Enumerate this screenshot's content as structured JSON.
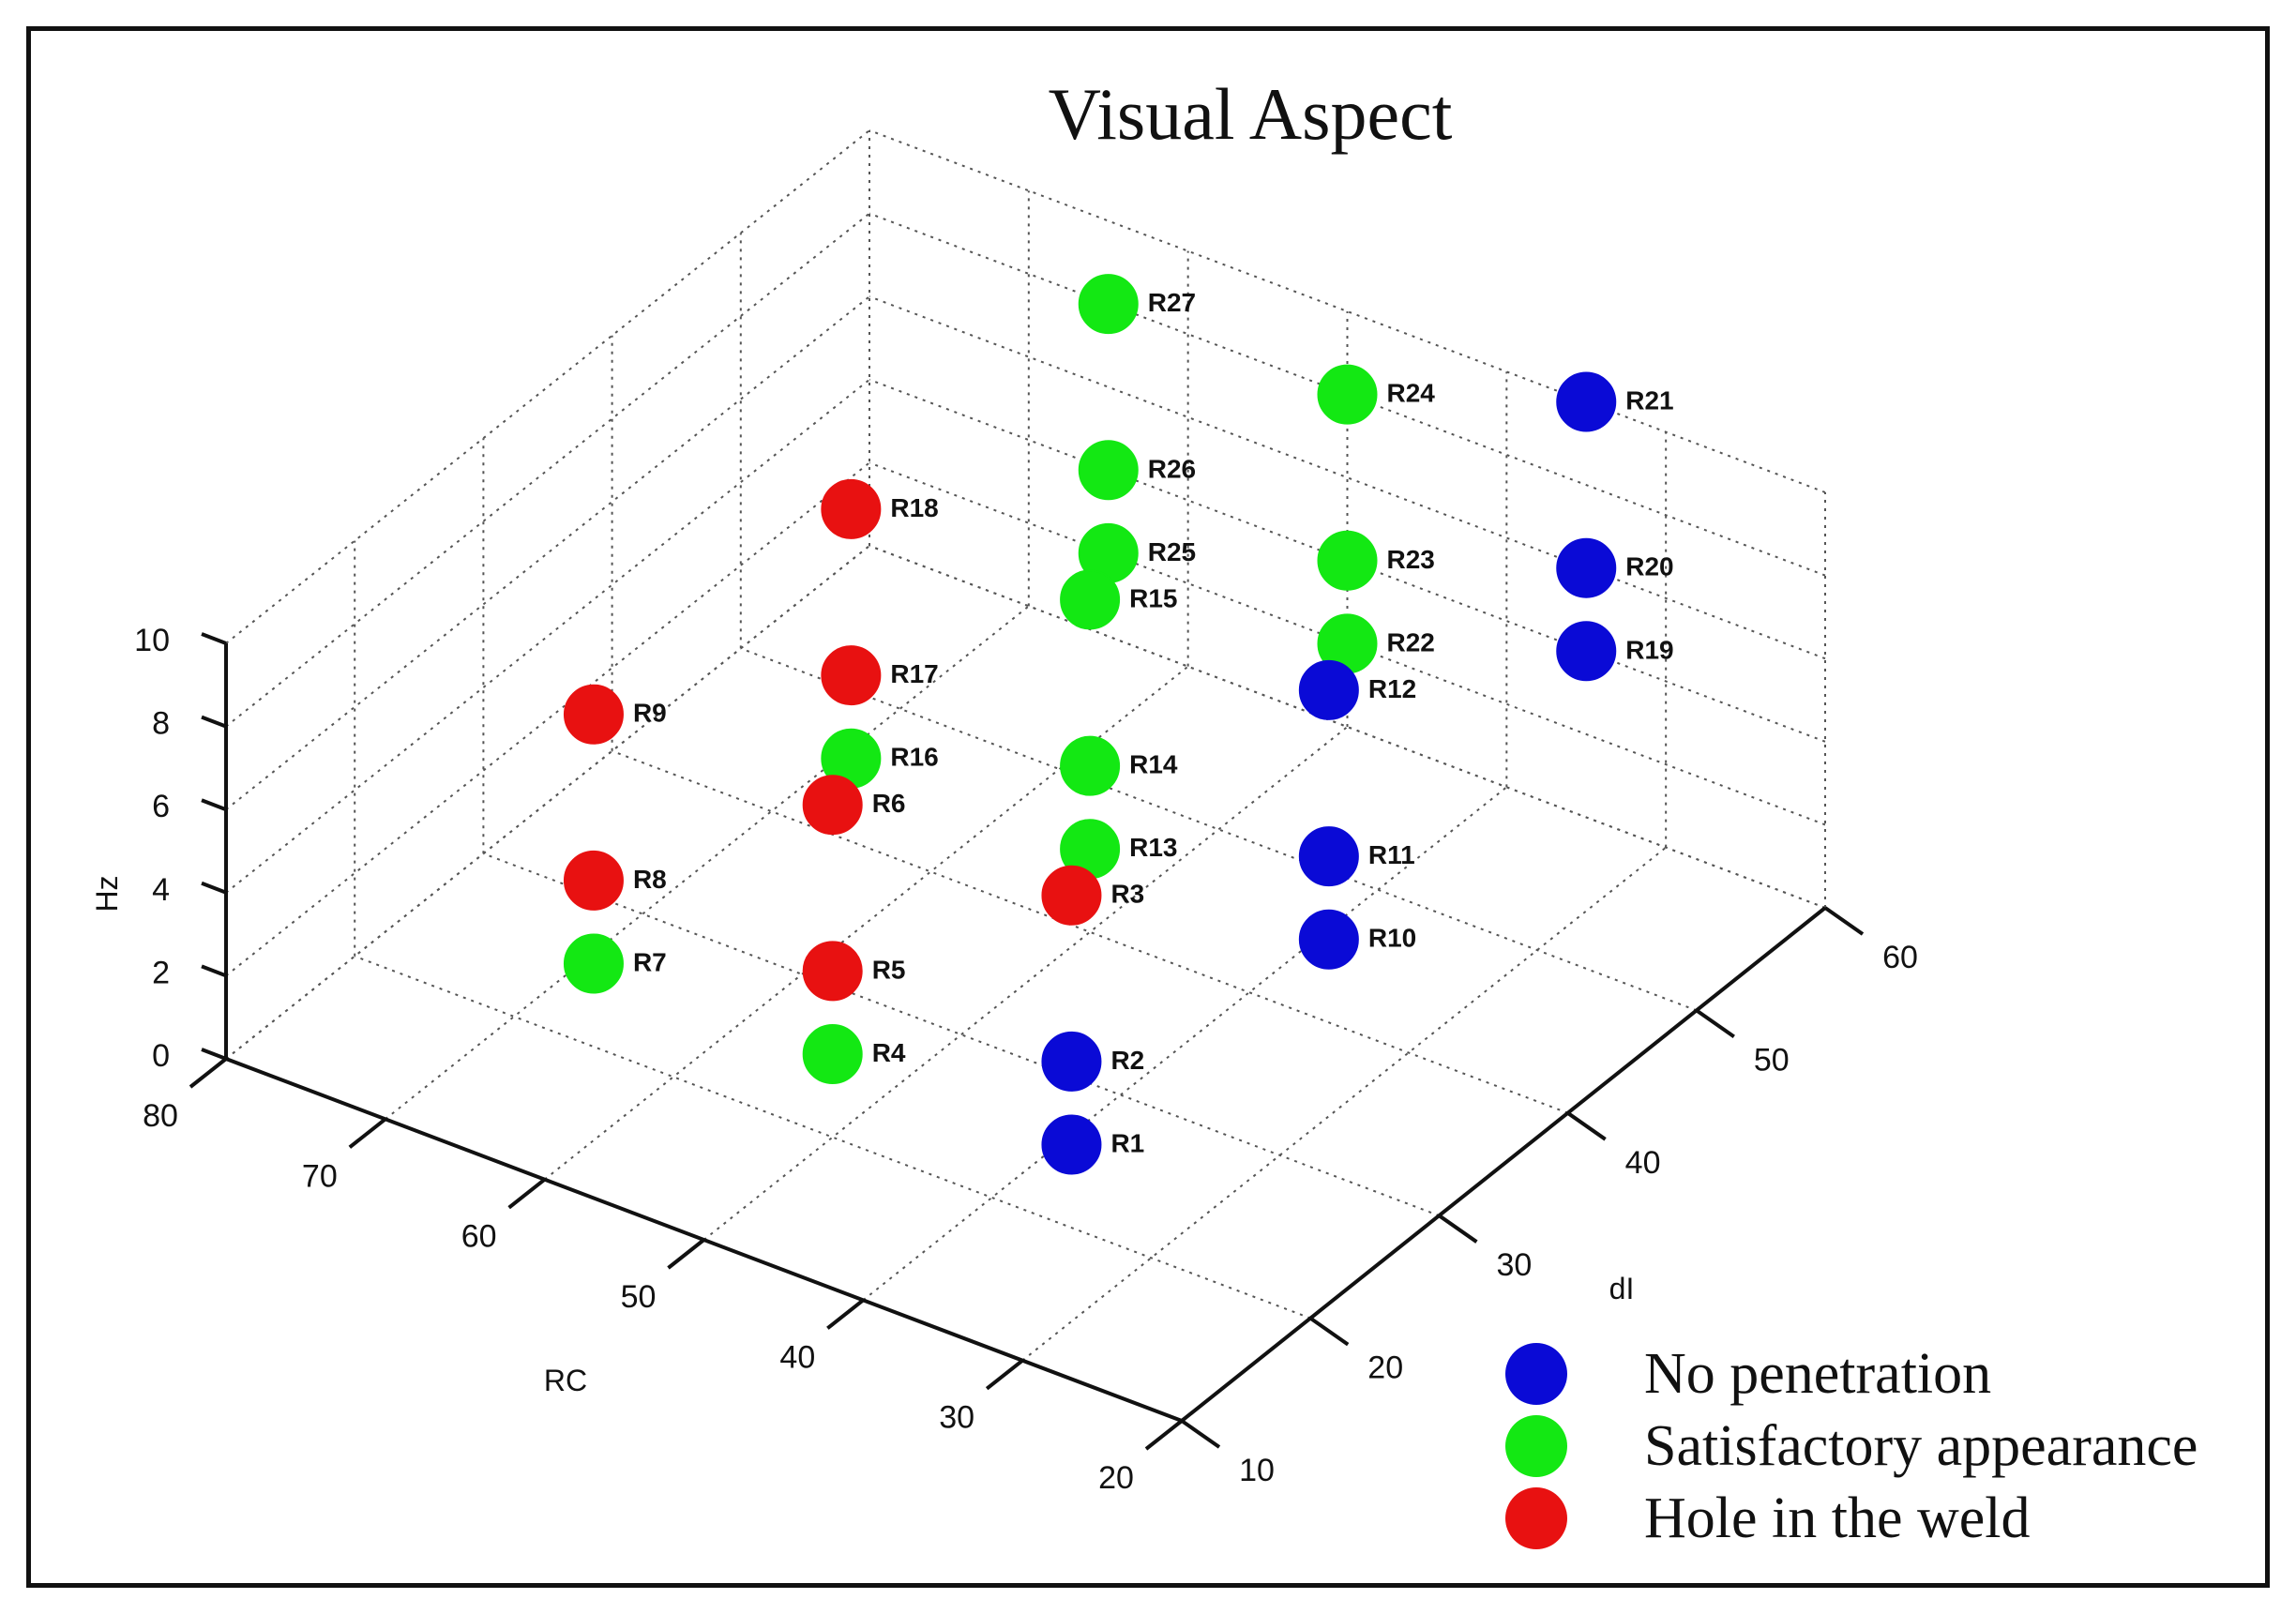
{
  "chart_data": {
    "type": "scatter",
    "title": "Visual Aspect",
    "xlabel": "RC",
    "ylabel": "dI",
    "zlabel": "Hz",
    "x_ticks": [
      "80",
      "70",
      "60",
      "50",
      "40",
      "30",
      "20"
    ],
    "y_ticks": [
      "10",
      "20",
      "30",
      "40",
      "50",
      "60"
    ],
    "z_ticks": [
      "0",
      "2",
      "4",
      "6",
      "8",
      "10"
    ],
    "xlim": [
      20,
      80
    ],
    "ylim": [
      10,
      60
    ],
    "zlim": [
      0,
      10
    ],
    "grid": true,
    "legend_position": "bottom-right",
    "series": [
      {
        "name": "No penetration",
        "color": "#0a0ad6",
        "points": [
          {
            "label": "R1",
            "x": 35,
            "y": 20,
            "z": 2
          },
          {
            "label": "R2",
            "x": 35,
            "y": 20,
            "z": 4
          },
          {
            "label": "R10",
            "x": 35,
            "y": 40,
            "z": 2
          },
          {
            "label": "R11",
            "x": 35,
            "y": 40,
            "z": 4
          },
          {
            "label": "R12",
            "x": 35,
            "y": 40,
            "z": 8
          },
          {
            "label": "R19",
            "x": 35,
            "y": 60,
            "z": 4
          },
          {
            "label": "R20",
            "x": 35,
            "y": 60,
            "z": 6
          },
          {
            "label": "R21",
            "x": 35,
            "y": 60,
            "z": 10
          }
        ]
      },
      {
        "name": "Satisfactory appearance",
        "color": "#13e813",
        "points": [
          {
            "label": "R4",
            "x": 50,
            "y": 20,
            "z": 2
          },
          {
            "label": "R7",
            "x": 65,
            "y": 20,
            "z": 2
          },
          {
            "label": "R13",
            "x": 50,
            "y": 40,
            "z": 2
          },
          {
            "label": "R14",
            "x": 50,
            "y": 40,
            "z": 4
          },
          {
            "label": "R15",
            "x": 50,
            "y": 40,
            "z": 8
          },
          {
            "label": "R16",
            "x": 65,
            "y": 40,
            "z": 2
          },
          {
            "label": "R22",
            "x": 50,
            "y": 60,
            "z": 2
          },
          {
            "label": "R23",
            "x": 50,
            "y": 60,
            "z": 4
          },
          {
            "label": "R24",
            "x": 50,
            "y": 60,
            "z": 8
          },
          {
            "label": "R25",
            "x": 65,
            "y": 60,
            "z": 2
          },
          {
            "label": "R26",
            "x": 65,
            "y": 60,
            "z": 4
          },
          {
            "label": "R27",
            "x": 65,
            "y": 60,
            "z": 8
          }
        ]
      },
      {
        "name": "Hole in the weld",
        "color": "#e81111",
        "points": [
          {
            "label": "R3",
            "x": 35,
            "y": 20,
            "z": 8
          },
          {
            "label": "R5",
            "x": 50,
            "y": 20,
            "z": 4
          },
          {
            "label": "R6",
            "x": 50,
            "y": 20,
            "z": 8
          },
          {
            "label": "R8",
            "x": 65,
            "y": 20,
            "z": 4
          },
          {
            "label": "R9",
            "x": 65,
            "y": 20,
            "z": 8
          },
          {
            "label": "R17",
            "x": 65,
            "y": 40,
            "z": 4
          },
          {
            "label": "R18",
            "x": 65,
            "y": 40,
            "z": 8
          }
        ]
      }
    ]
  }
}
